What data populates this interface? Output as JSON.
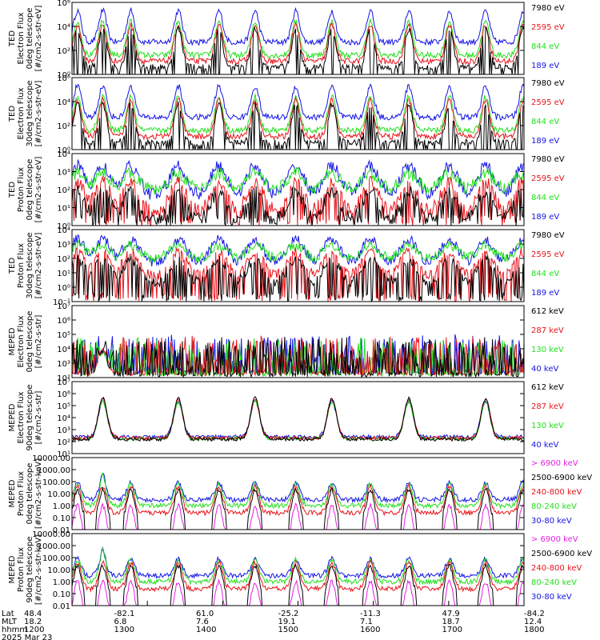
{
  "colors": {
    "black": "#000000",
    "red": "#e8141c",
    "green": "#22e01c",
    "blue": "#1414e6",
    "magenta": "#e61ee6"
  },
  "chart_data": [
    {
      "type": "line",
      "ylabel": [
        "TED",
        "Electron Flux",
        "0deg telescope",
        "[#/cm2-s-str-eV]"
      ],
      "y_ticks": [
        "10⁶",
        "10⁴",
        "10²",
        "10⁰"
      ],
      "y_scale": "log",
      "ylim": [
        1,
        1000000
      ],
      "legend": [
        {
          "label": "7980 eV",
          "color": "black"
        },
        {
          "label": "2595 eV",
          "color": "red"
        },
        {
          "label": "844 eV",
          "color": "green"
        },
        {
          "label": "189 eV",
          "color": "blue"
        }
      ]
    },
    {
      "type": "line",
      "ylabel": [
        "TED",
        "Electron Flux",
        "30deg telescope",
        "[#/cm2-s-str-eV]"
      ],
      "y_ticks": [
        "10⁶",
        "10⁴",
        "10²",
        "10⁰"
      ],
      "y_scale": "log",
      "ylim": [
        1,
        1000000
      ],
      "legend": [
        {
          "label": "7980 eV",
          "color": "black"
        },
        {
          "label": "2595 eV",
          "color": "red"
        },
        {
          "label": "844 eV",
          "color": "green"
        },
        {
          "label": "189 eV",
          "color": "blue"
        }
      ]
    },
    {
      "type": "line",
      "ylabel": [
        "TED",
        "Proton Flux",
        "0deg telescope",
        "[#/cm2-s-str-eV]"
      ],
      "y_ticks": [
        "10⁴",
        "10³",
        "10²",
        "10¹",
        "10⁰"
      ],
      "y_scale": "log",
      "ylim": [
        1,
        10000
      ],
      "legend": [
        {
          "label": "7980 eV",
          "color": "black"
        },
        {
          "label": "2595 eV",
          "color": "red"
        },
        {
          "label": "844 eV",
          "color": "green"
        },
        {
          "label": "189 eV",
          "color": "blue"
        }
      ]
    },
    {
      "type": "line",
      "ylabel": [
        "TED",
        "Proton Flux",
        "30deg telescope",
        "[#/cm2-s-str-eV]"
      ],
      "y_ticks": [
        "10⁴",
        "10³",
        "10²",
        "10¹",
        "10⁰",
        "10⁻¹"
      ],
      "y_scale": "log",
      "ylim": [
        0.1,
        10000
      ],
      "legend": [
        {
          "label": "7980 eV",
          "color": "black"
        },
        {
          "label": "2595 eV",
          "color": "red"
        },
        {
          "label": "844 eV",
          "color": "green"
        },
        {
          "label": "189 eV",
          "color": "blue"
        }
      ]
    },
    {
      "type": "line",
      "ylabel": [
        "MEPED",
        "Electron Flux",
        "0deg telescope",
        "[#/cm2-s-str]"
      ],
      "y_ticks": [
        "10⁷",
        "10⁶",
        "10⁵",
        "10⁴",
        "10³",
        "10²"
      ],
      "y_scale": "log",
      "ylim": [
        100,
        10000000
      ],
      "legend": [
        {
          "label": "612 keV",
          "color": "black"
        },
        {
          "label": "287 keV",
          "color": "red"
        },
        {
          "label": "130 keV",
          "color": "green"
        },
        {
          "label": "40 keV",
          "color": "blue"
        }
      ]
    },
    {
      "type": "line",
      "ylabel": [
        "MEPED",
        "Electron Flux",
        "90deg telescope",
        "[#/cm2-s-str]"
      ],
      "y_ticks": [
        "10⁷",
        "10⁶",
        "10⁵",
        "10⁴",
        "10³",
        "10²",
        "10¹"
      ],
      "y_scale": "log",
      "ylim": [
        10,
        10000000
      ],
      "legend": [
        {
          "label": "612 keV",
          "color": "black"
        },
        {
          "label": "287 keV",
          "color": "red"
        },
        {
          "label": "130 keV",
          "color": "green"
        },
        {
          "label": "40 keV",
          "color": "blue"
        }
      ]
    },
    {
      "type": "line",
      "ylabel": [
        "MEPED",
        "Proton Flux",
        "0deg telescope",
        "[#/cm2-s-str-keV]"
      ],
      "y_ticks": [
        "10000.00",
        "1000.00",
        "100.00",
        "10.00",
        "1.00",
        "0.10",
        "0.01"
      ],
      "y_scale": "log",
      "ylim": [
        0.01,
        10000
      ],
      "legend": [
        {
          "label": "> 6900 keV",
          "color": "magenta"
        },
        {
          "label": "2500-6900 keV",
          "color": "black"
        },
        {
          "label": "240-800 keV",
          "color": "red"
        },
        {
          "label": "80-240 keV",
          "color": "green"
        },
        {
          "label": "30-80 keV",
          "color": "blue"
        }
      ]
    },
    {
      "type": "line",
      "ylabel": [
        "MEPED",
        "Proton Flux",
        "90deg telescope",
        "[#/cm2-s-str-keV]"
      ],
      "y_ticks": [
        "10000.00",
        "1000.00",
        "100.00",
        "10.00",
        "1.00",
        "0.10",
        "0.01"
      ],
      "y_scale": "log",
      "ylim": [
        0.01,
        10000
      ],
      "legend": [
        {
          "label": "> 6900 keV",
          "color": "magenta"
        },
        {
          "label": "2500-6900 keV",
          "color": "black"
        },
        {
          "label": "240-800 keV",
          "color": "red"
        },
        {
          "label": "80-240 keV",
          "color": "green"
        },
        {
          "label": "30-80 keV",
          "color": "blue"
        }
      ]
    }
  ],
  "x_axis": {
    "row_labels": [
      "Lat",
      "MLT",
      "hhmm"
    ],
    "ticks": [
      {
        "lat": "48.4",
        "mlt": "18.2",
        "hhmm": "1200"
      },
      {
        "lat": "-82.1",
        "mlt": "6.8",
        "hhmm": "1300"
      },
      {
        "lat": "61.0",
        "mlt": "7.6",
        "hhmm": "1400"
      },
      {
        "lat": "-25.2",
        "mlt": "19.1",
        "hhmm": "1500"
      },
      {
        "lat": "-11.3",
        "mlt": "7.1",
        "hhmm": "1600"
      },
      {
        "lat": "47.9",
        "mlt": "18.7",
        "hhmm": "1700"
      },
      {
        "lat": "-84.2",
        "mlt": "12.4",
        "hhmm": "1800"
      }
    ],
    "date": "2025 Mar 23",
    "xlim": [
      1200,
      1800
    ]
  }
}
